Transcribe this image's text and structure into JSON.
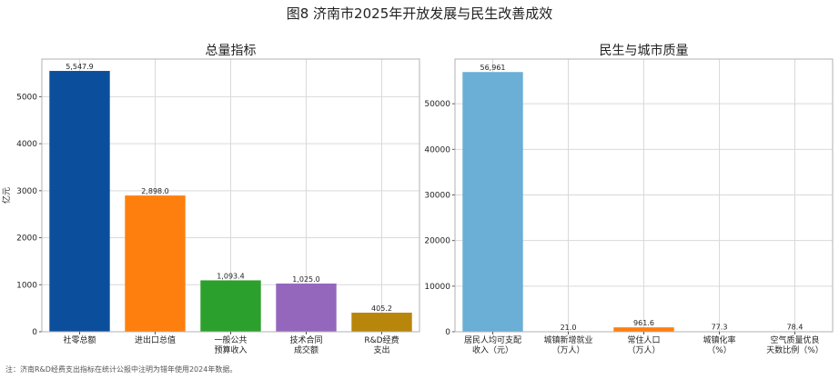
{
  "figure": {
    "title": "图8 济南市2025年开放发展与民生改善成效",
    "footnote": "注：济南R&D经费支出指标在统计公报中注明为错年使用2024年数据。"
  },
  "chart_data": [
    {
      "type": "bar",
      "title": "总量指标",
      "ylabel": "亿元",
      "xlabel": "",
      "ylim": [
        0,
        5800
      ],
      "yticks": [
        0,
        1000,
        2000,
        3000,
        4000,
        5000
      ],
      "grid": true,
      "categories": [
        [
          "社零总额"
        ],
        [
          "进出口总值"
        ],
        [
          "一般公共",
          "预算收入"
        ],
        [
          "技术合同",
          "成交额"
        ],
        [
          "R&D经费",
          "支出"
        ]
      ],
      "values": [
        5547.9,
        2898.0,
        1093.4,
        1025.0,
        405.2
      ],
      "value_labels": [
        "5,547.9",
        "2,898.0",
        "1,093.4",
        "1,025.0",
        "405.2"
      ],
      "colors": [
        "#0b4f9c",
        "#ff7f0e",
        "#2ca02c",
        "#9467bd",
        "#b8860b"
      ]
    },
    {
      "type": "bar",
      "title": "民生与城市质量",
      "ylabel": "",
      "xlabel": "",
      "ylim": [
        0,
        59800
      ],
      "yticks": [
        0,
        10000,
        20000,
        30000,
        40000,
        50000
      ],
      "grid": true,
      "categories": [
        [
          "居民人均可支配",
          "收入（元）"
        ],
        [
          "城镇新增就业",
          "（万人）"
        ],
        [
          "常住人口",
          "（万人）"
        ],
        [
          "城镇化率",
          "（%）"
        ],
        [
          "空气质量优良",
          "天数比例（%）"
        ]
      ],
      "values": [
        56961,
        21.0,
        961.6,
        77.3,
        78.4
      ],
      "value_labels": [
        "56,961",
        "21.0",
        "961.6",
        "77.3",
        "78.4"
      ],
      "colors": [
        "#6baed6",
        "#2ca02c",
        "#ff7f0e",
        "#9467bd",
        "#b8860b"
      ]
    }
  ]
}
